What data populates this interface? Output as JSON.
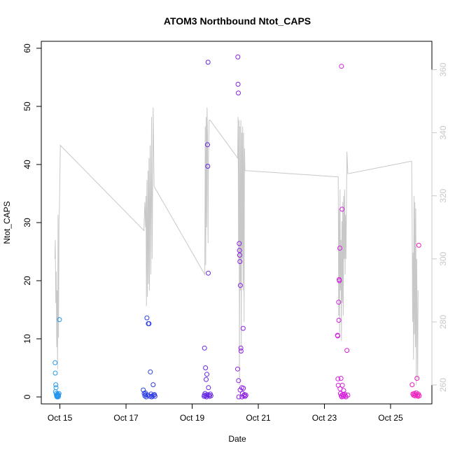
{
  "chart_data": {
    "type": "scatter",
    "title": "ATOM3 Northbound Ntot_CAPS",
    "xlabel": "Date",
    "ylabel": "Ntot_CAPS",
    "x_type": "date",
    "xlim": [
      "2016-10-14 10:30",
      "2016-10-26 06:00"
    ],
    "ylim": [
      -1.2,
      61.2
    ],
    "y2lim": [
      254,
      369
    ],
    "x_ticks": [
      "2016-10-15",
      "2016-10-17",
      "2016-10-19",
      "2016-10-21",
      "2016-10-23",
      "2016-10-25"
    ],
    "x_tick_labels": [
      "Oct 15",
      "Oct 17",
      "Oct 19",
      "Oct 21",
      "Oct 23",
      "Oct 25"
    ],
    "y_ticks": [
      0,
      10,
      20,
      30,
      40,
      50,
      60
    ],
    "y2_ticks": [
      260,
      280,
      300,
      320,
      340,
      360
    ],
    "grid": false,
    "colors": {
      "altitude_line": "#c8c8c8",
      "axis": "#000000",
      "right_axis": "#c8c8c8",
      "gradient": [
        "#2aaaf0",
        "#1660e8",
        "#3a2ee0",
        "#8a20e8",
        "#c222e6",
        "#e21ed8",
        "#f51cb4"
      ]
    },
    "series": [
      {
        "marker": "open-circle",
        "axis": "left",
        "points": [
          [
            "2016-10-14 20:30",
            5.9
          ],
          [
            "2016-10-14 20:40",
            4.1
          ],
          [
            "2016-10-14 21:00",
            2.1
          ],
          [
            "2016-10-14 21:10",
            1.6
          ],
          [
            "2016-10-14 20:50",
            0.9
          ],
          [
            "2016-10-14 21:20",
            0.6
          ],
          [
            "2016-10-14 21:30",
            0.3
          ],
          [
            "2016-10-14 21:40",
            0.1
          ],
          [
            "2016-10-14 21:50",
            0.2
          ],
          [
            "2016-10-14 22:00",
            0.0
          ],
          [
            "2016-10-14 22:10",
            0.3
          ],
          [
            "2016-10-14 22:20",
            0.5
          ],
          [
            "2016-10-14 22:30",
            0.2
          ],
          [
            "2016-10-14 22:40",
            0.0
          ],
          [
            "2016-10-14 22:50",
            0.4
          ],
          [
            "2016-10-14 23:00",
            0.1
          ],
          [
            "2016-10-14 23:20",
            0.6
          ],
          [
            "2016-10-14 23:40",
            13.3
          ],
          [
            "2016-10-17 12:30",
            1.2
          ],
          [
            "2016-10-17 13:10",
            0.6
          ],
          [
            "2016-10-17 13:40",
            0.2
          ],
          [
            "2016-10-17 14:10",
            0.4
          ],
          [
            "2016-10-17 14:40",
            0.0
          ],
          [
            "2016-10-17 15:10",
            13.6
          ],
          [
            "2016-10-17 15:40",
            0.3
          ],
          [
            "2016-10-17 16:10",
            12.6
          ],
          [
            "2016-10-17 16:40",
            12.6
          ],
          [
            "2016-10-17 17:10",
            0.1
          ],
          [
            "2016-10-17 17:40",
            4.3
          ],
          [
            "2016-10-17 18:10",
            0.5
          ],
          [
            "2016-10-17 18:40",
            0.0
          ],
          [
            "2016-10-17 19:10",
            0.2
          ],
          [
            "2016-10-17 19:40",
            2.1
          ],
          [
            "2016-10-17 20:10",
            0.3
          ],
          [
            "2016-10-17 20:40",
            0.4
          ],
          [
            "2016-10-17 21:00",
            0.1
          ],
          [
            "2016-10-17 14:00",
            0.7
          ],
          [
            "2016-10-17 16:00",
            0.3
          ],
          [
            "2016-10-19 09:00",
            8.4
          ],
          [
            "2016-10-19 09:40",
            5.0
          ],
          [
            "2016-10-19 10:10",
            3.0
          ],
          [
            "2016-10-19 10:40",
            3.9
          ],
          [
            "2016-10-19 09:20",
            0.6
          ],
          [
            "2016-10-19 09:50",
            0.2
          ],
          [
            "2016-10-19 10:20",
            0.0
          ],
          [
            "2016-10-19 10:50",
            0.4
          ],
          [
            "2016-10-19 11:10",
            43.4
          ],
          [
            "2016-10-19 11:20",
            39.7
          ],
          [
            "2016-10-19 11:30",
            57.6
          ],
          [
            "2016-10-19 11:40",
            21.3
          ],
          [
            "2016-10-19 11:50",
            1.6
          ],
          [
            "2016-10-19 12:10",
            0.3
          ],
          [
            "2016-10-19 12:40",
            0.1
          ],
          [
            "2016-10-19 13:10",
            0.5
          ],
          [
            "2016-10-19 13:40",
            0.2
          ],
          [
            "2016-10-19 08:40",
            0.1
          ],
          [
            "2016-10-19 08:50",
            0.3
          ],
          [
            "2016-10-20 09:10",
            58.5
          ],
          [
            "2016-10-20 09:20",
            53.8
          ],
          [
            "2016-10-20 09:30",
            52.3
          ],
          [
            "2016-10-20 09:00",
            4.8
          ],
          [
            "2016-10-20 09:40",
            2.8
          ],
          [
            "2016-10-20 09:50",
            0.0
          ],
          [
            "2016-10-20 10:10",
            26.4
          ],
          [
            "2016-10-20 10:20",
            25.2
          ],
          [
            "2016-10-20 10:30",
            24.4
          ],
          [
            "2016-10-20 10:40",
            23.3
          ],
          [
            "2016-10-20 11:00",
            19.2
          ],
          [
            "2016-10-20 11:20",
            8.4
          ],
          [
            "2016-10-20 11:30",
            7.9
          ],
          [
            "2016-10-20 12:00",
            1.6
          ],
          [
            "2016-10-20 12:30",
            0.6
          ],
          [
            "2016-10-20 13:00",
            11.8
          ],
          [
            "2016-10-20 13:30",
            0.2
          ],
          [
            "2016-10-20 14:00",
            0.4
          ],
          [
            "2016-10-20 14:30",
            0.1
          ],
          [
            "2016-10-20 15:00",
            0.3
          ],
          [
            "2016-10-20 10:50",
            1.2
          ],
          [
            "2016-10-20 12:10",
            0.0
          ],
          [
            "2016-10-20 13:10",
            1.5
          ],
          [
            "2016-10-23 09:30",
            10.6
          ],
          [
            "2016-10-23 09:40",
            10.5
          ],
          [
            "2016-10-23 09:50",
            3.1
          ],
          [
            "2016-10-23 10:00",
            2.0
          ],
          [
            "2016-10-23 10:20",
            16.3
          ],
          [
            "2016-10-23 10:30",
            13.2
          ],
          [
            "2016-10-23 10:40",
            20.2
          ],
          [
            "2016-10-23 10:50",
            20.0
          ],
          [
            "2016-10-23 11:10",
            25.6
          ],
          [
            "2016-10-23 12:20",
            56.9
          ],
          [
            "2016-10-23 12:50",
            32.3
          ],
          [
            "2016-10-23 12:00",
            3.2
          ],
          [
            "2016-10-23 11:20",
            1.4
          ],
          [
            "2016-10-23 11:40",
            0.6
          ],
          [
            "2016-10-23 12:10",
            0.2
          ],
          [
            "2016-10-23 12:40",
            0.0
          ],
          [
            "2016-10-23 13:10",
            0.4
          ],
          [
            "2016-10-23 13:40",
            0.1
          ],
          [
            "2016-10-23 14:10",
            0.3
          ],
          [
            "2016-10-23 14:40",
            0.5
          ],
          [
            "2016-10-23 15:10",
            0.2
          ],
          [
            "2016-10-23 15:40",
            0.0
          ],
          [
            "2016-10-23 16:20",
            8.0
          ],
          [
            "2016-10-23 17:00",
            0.3
          ],
          [
            "2016-10-23 13:00",
            2.0
          ],
          [
            "2016-10-23 14:00",
            1.1
          ],
          [
            "2016-10-25 15:40",
            2.1
          ],
          [
            "2016-10-25 16:10",
            0.5
          ],
          [
            "2016-10-25 16:40",
            0.3
          ],
          [
            "2016-10-25 17:10",
            0.6
          ],
          [
            "2016-10-25 17:40",
            0.2
          ],
          [
            "2016-10-25 18:10",
            0.4
          ],
          [
            "2016-10-25 18:40",
            0.7
          ],
          [
            "2016-10-25 19:10",
            3.2
          ],
          [
            "2016-10-25 19:30",
            0.3
          ],
          [
            "2016-10-25 19:50",
            0.1
          ],
          [
            "2016-10-25 20:10",
            0.5
          ],
          [
            "2016-10-25 20:30",
            26.1
          ],
          [
            "2016-10-25 20:50",
            0.2
          ]
        ]
      },
      {
        "marker": "line",
        "axis": "right",
        "points": [
          [
            "2016-10-14 20:20",
            300
          ],
          [
            "2016-10-14 20:40",
            306
          ],
          [
            "2016-10-14 21:00",
            286
          ],
          [
            "2016-10-14 21:20",
            296
          ],
          [
            "2016-10-14 21:40",
            272
          ],
          [
            "2016-10-14 22:00",
            290
          ],
          [
            "2016-10-14 22:20",
            265
          ],
          [
            "2016-10-14 22:40",
            314
          ],
          [
            "2016-10-14 23:00",
            275
          ],
          [
            "2016-10-14 23:20",
            312
          ],
          [
            "2016-10-14 23:40",
            316
          ],
          [
            "2016-10-15 00:20",
            336
          ],
          [
            "2016-10-17 13:00",
            309
          ],
          [
            "2016-10-17 13:40",
            318
          ],
          [
            "2016-10-17 14:10",
            310
          ],
          [
            "2016-10-17 14:30",
            320
          ],
          [
            "2016-10-17 14:50",
            285
          ],
          [
            "2016-10-17 15:10",
            325
          ],
          [
            "2016-10-17 15:30",
            288
          ],
          [
            "2016-10-17 16:00",
            328
          ],
          [
            "2016-10-17 16:20",
            292
          ],
          [
            "2016-10-17 16:40",
            332
          ],
          [
            "2016-10-17 17:00",
            290
          ],
          [
            "2016-10-17 17:30",
            336
          ],
          [
            "2016-10-17 18:00",
            295
          ],
          [
            "2016-10-17 18:30",
            345
          ],
          [
            "2016-10-17 19:00",
            300
          ],
          [
            "2016-10-17 19:40",
            348
          ],
          [
            "2016-10-17 20:20",
            323
          ],
          [
            "2016-10-19 09:10",
            295
          ],
          [
            "2016-10-19 09:30",
            342
          ],
          [
            "2016-10-19 09:50",
            298
          ],
          [
            "2016-10-19 10:10",
            345
          ],
          [
            "2016-10-19 10:30",
            310
          ],
          [
            "2016-10-19 10:50",
            348
          ],
          [
            "2016-10-19 11:10",
            340
          ],
          [
            "2016-10-19 11:30",
            305
          ],
          [
            "2016-10-19 11:50",
            332
          ],
          [
            "2016-10-19 12:20",
            344
          ],
          [
            "2016-10-19 13:00",
            344
          ],
          [
            "2016-10-20 09:00",
            332
          ],
          [
            "2016-10-20 09:20",
            345
          ],
          [
            "2016-10-20 09:40",
            300
          ],
          [
            "2016-10-20 10:00",
            344
          ],
          [
            "2016-10-20 10:20",
            260
          ],
          [
            "2016-10-20 10:40",
            342
          ],
          [
            "2016-10-20 11:00",
            290
          ],
          [
            "2016-10-20 11:20",
            344
          ],
          [
            "2016-10-20 11:40",
            270
          ],
          [
            "2016-10-20 12:00",
            340
          ],
          [
            "2016-10-20 12:20",
            300
          ],
          [
            "2016-10-20 12:40",
            342
          ],
          [
            "2016-10-20 13:00",
            290
          ],
          [
            "2016-10-20 13:20",
            340
          ],
          [
            "2016-10-20 13:40",
            280
          ],
          [
            "2016-10-20 14:00",
            335
          ],
          [
            "2016-10-20 14:20",
            328
          ],
          [
            "2016-10-23 10:00",
            326
          ],
          [
            "2016-10-23 10:20",
            282
          ],
          [
            "2016-10-23 10:40",
            316
          ],
          [
            "2016-10-23 11:00",
            276
          ],
          [
            "2016-10-23 11:20",
            322
          ],
          [
            "2016-10-23 11:40",
            290
          ],
          [
            "2016-10-23 12:00",
            306
          ],
          [
            "2016-10-23 12:20",
            274
          ],
          [
            "2016-10-23 12:40",
            312
          ],
          [
            "2016-10-23 13:00",
            286
          ],
          [
            "2016-10-23 13:20",
            318
          ],
          [
            "2016-10-23 13:40",
            282
          ],
          [
            "2016-10-23 14:00",
            320
          ],
          [
            "2016-10-23 14:20",
            300
          ],
          [
            "2016-10-23 14:40",
            322
          ],
          [
            "2016-10-23 15:00",
            295
          ],
          [
            "2016-10-23 15:20",
            314
          ],
          [
            "2016-10-23 15:40",
            300
          ],
          [
            "2016-10-23 16:20",
            334
          ],
          [
            "2016-10-23 17:00",
            327
          ],
          [
            "2016-10-25 15:20",
            331
          ],
          [
            "2016-10-25 15:40",
            312
          ],
          [
            "2016-10-25 16:00",
            280
          ],
          [
            "2016-10-25 16:20",
            302
          ],
          [
            "2016-10-25 16:40",
            268
          ],
          [
            "2016-10-25 17:00",
            320
          ],
          [
            "2016-10-25 17:20",
            276
          ],
          [
            "2016-10-25 17:40",
            318
          ],
          [
            "2016-10-25 18:00",
            272
          ],
          [
            "2016-10-25 18:20",
            316
          ],
          [
            "2016-10-25 18:40",
            260
          ],
          [
            "2016-10-25 19:00",
            300
          ],
          [
            "2016-10-25 19:20",
            282
          ],
          [
            "2016-10-25 19:40",
            262
          ],
          [
            "2016-10-25 20:00",
            290
          ]
        ]
      }
    ]
  }
}
